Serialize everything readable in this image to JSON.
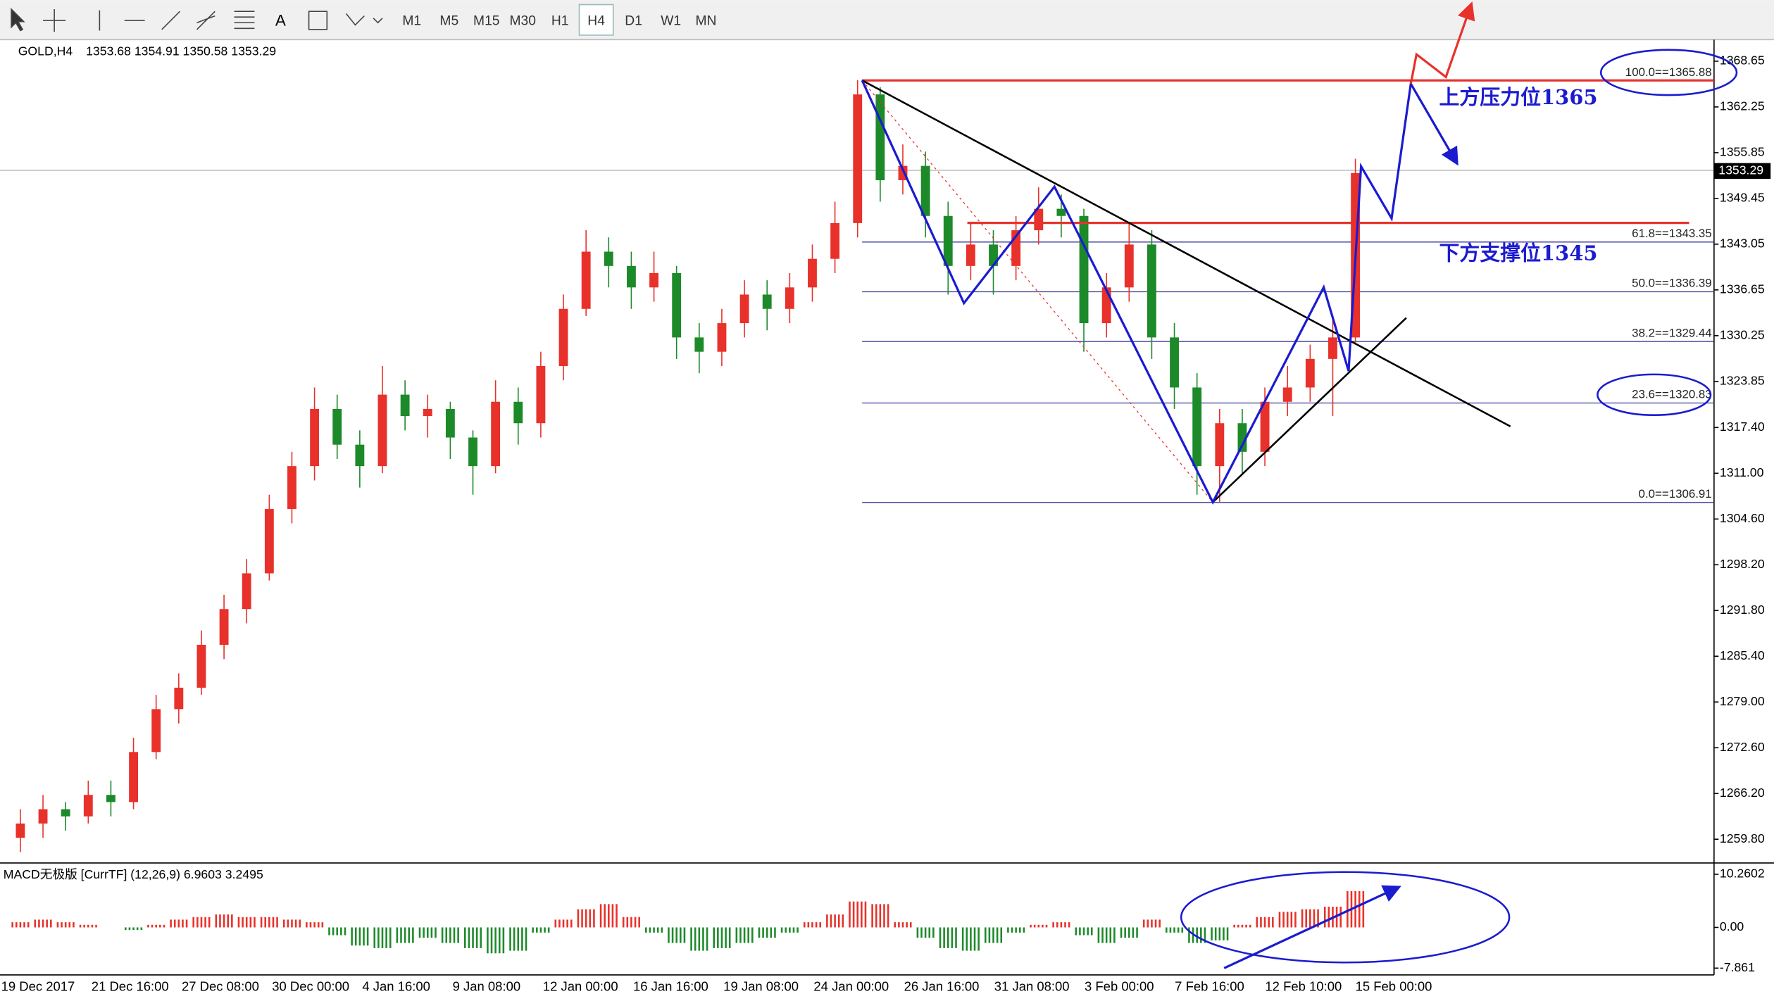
{
  "toolbar": {
    "timeframes": [
      "M1",
      "M5",
      "M15",
      "M30",
      "H1",
      "H4",
      "D1",
      "W1",
      "MN"
    ],
    "active": 5
  },
  "chart_data": {
    "type": "candlestick",
    "symbol": "GOLD,H4",
    "ohlc": "1353.68 1354.91 1350.58 1353.29",
    "up_color": "#e8312a",
    "down_color": "#1d8a2a",
    "categories": [
      "19 Dec 2017",
      "21 Dec 16:00",
      "27 Dec 08:00",
      "30 Dec 00:00",
      "4 Jan 16:00",
      "9 Jan 08:00",
      "12 Jan 00:00",
      "16 Jan 16:00",
      "19 Jan 08:00",
      "24 Jan 00:00",
      "26 Jan 16:00",
      "31 Jan 08:00",
      "3 Feb 00:00",
      "7 Feb 16:00",
      "12 Feb 10:00",
      "15 Feb 00:00"
    ],
    "ylim": [
      1256.64,
      1371.66
    ],
    "yticks": [
      1368.65,
      1362.25,
      1355.85,
      1349.45,
      1343.05,
      1336.65,
      1330.25,
      1323.85,
      {
        "value": 1317.4,
        "label": "1317.40"
      },
      {
        "value": 1311,
        "label": "1311.00"
      },
      {
        "value": 1304.6,
        "label": "1304.60"
      },
      {
        "value": 1298.2,
        "label": "1298.20"
      },
      {
        "value": 1291.8,
        "label": "1291.80"
      },
      {
        "value": 1285.4,
        "label": "1285.40"
      },
      {
        "value": 1279,
        "label": "1279.00"
      },
      {
        "value": 1272.6,
        "label": "1272.60"
      },
      {
        "value": 1266.2,
        "label": "1266.20"
      },
      {
        "value": 1259.8,
        "label": "1259.80"
      }
    ],
    "current_price": 1353.29,
    "candles": [
      [
        1260,
        1264,
        1258,
        1262
      ],
      [
        1262,
        1266,
        1260,
        1264
      ],
      [
        1264,
        1265,
        1261,
        1263
      ],
      [
        1263,
        1268,
        1262,
        1266
      ],
      [
        1266,
        1268,
        1263,
        1265
      ],
      [
        1265,
        1274,
        1264,
        1272
      ],
      [
        1272,
        1280,
        1271,
        1278
      ],
      [
        1278,
        1283,
        1276,
        1281
      ],
      [
        1281,
        1289,
        1280,
        1287
      ],
      [
        1287,
        1294,
        1285,
        1292
      ],
      [
        1292,
        1299,
        1290,
        1297
      ],
      [
        1297,
        1308,
        1296,
        1306
      ],
      [
        1306,
        1314,
        1304,
        1312
      ],
      [
        1312,
        1323,
        1310,
        1320
      ],
      [
        1320,
        1322,
        1313,
        1315
      ],
      [
        1315,
        1317,
        1309,
        1312
      ],
      [
        1312,
        1326,
        1311,
        1322
      ],
      [
        1322,
        1324,
        1317,
        1319
      ],
      [
        1319,
        1322,
        1316,
        1320
      ],
      [
        1320,
        1321,
        1313,
        1316
      ],
      [
        1316,
        1317,
        1308,
        1312
      ],
      [
        1312,
        1324,
        1311,
        1321
      ],
      [
        1321,
        1323,
        1315,
        1318
      ],
      [
        1318,
        1328,
        1316,
        1326
      ],
      [
        1326,
        1336,
        1324,
        1334
      ],
      [
        1334,
        1345,
        1333,
        1342
      ],
      [
        1342,
        1344,
        1337,
        1340
      ],
      [
        1340,
        1342,
        1334,
        1337
      ],
      [
        1337,
        1342,
        1335,
        1339
      ],
      [
        1339,
        1340,
        1327,
        1330
      ],
      [
        1330,
        1332,
        1325,
        1328
      ],
      [
        1328,
        1334,
        1326,
        1332
      ],
      [
        1332,
        1338,
        1330,
        1336
      ],
      [
        1336,
        1338,
        1331,
        1334
      ],
      [
        1334,
        1339,
        1332,
        1337
      ],
      [
        1337,
        1343,
        1335,
        1341
      ],
      [
        1341,
        1349,
        1339,
        1346
      ],
      [
        1346,
        1366,
        1344,
        1364
      ],
      [
        1364,
        1365,
        1349,
        1352
      ],
      [
        1352,
        1357,
        1350,
        1354
      ],
      [
        1354,
        1356,
        1344,
        1347
      ],
      [
        1347,
        1349,
        1336,
        1340
      ],
      [
        1340,
        1346,
        1338,
        1343
      ],
      [
        1343,
        1345,
        1336,
        1340
      ],
      [
        1340,
        1347,
        1338,
        1345
      ],
      [
        1345,
        1351,
        1343,
        1348
      ],
      [
        1348,
        1350,
        1344,
        1347
      ],
      [
        1347,
        1348,
        1328,
        1332
      ],
      [
        1332,
        1339,
        1330,
        1337
      ],
      [
        1337,
        1346,
        1335,
        1343
      ],
      [
        1343,
        1345,
        1327,
        1330
      ],
      [
        1330,
        1332,
        1320,
        1323
      ],
      [
        1323,
        1325,
        1308,
        1312
      ],
      [
        1312,
        1320,
        1307,
        1318
      ],
      [
        1318,
        1320,
        1311,
        1314
      ],
      [
        1314,
        1323,
        1312,
        1321
      ],
      [
        1321,
        1326,
        1319,
        1323
      ],
      [
        1323,
        1329,
        1321,
        1327
      ],
      [
        1327,
        1333,
        1319,
        1330
      ],
      [
        1330,
        1355,
        1329,
        1353
      ]
    ],
    "fib_levels": [
      {
        "label": "100.0==1365.88",
        "value": 1365.88
      },
      {
        "label": "61.8==1343.35",
        "value": 1343.35
      },
      {
        "label": "50.0==1336.39",
        "value": 1336.39
      },
      {
        "label": "38.2==1329.44",
        "value": 1329.44
      },
      {
        "label": "23.6==1320.83",
        "value": 1320.83
      },
      {
        "label": "0.0==1306.91",
        "value": 1306.91
      }
    ],
    "annotations": [
      "上方压力位1365",
      "下方支撑位1345"
    ],
    "macd": {
      "title": "MACD无极版 [CurrTF] (12,26,9) 6.9603 3.2495",
      "ylim": [
        -9.17,
        12.01
      ],
      "yticks": [
        10.2602,
        {
          "value": 0,
          "label": "0.00"
        },
        -7.861
      ],
      "histogram": [
        1,
        1.5,
        1,
        0.5,
        0,
        -0.5,
        0.5,
        1.5,
        2,
        2.5,
        2,
        2,
        1.5,
        1,
        -1.5,
        -3.5,
        -4,
        -3,
        -2,
        -3,
        -4,
        -5,
        -4.5,
        -1,
        1.5,
        3.5,
        4.5,
        2,
        -1,
        -3,
        -4.5,
        -4,
        -3,
        -2,
        -1,
        1,
        2.5,
        5,
        4.5,
        1,
        -2,
        -4,
        -4.5,
        -3,
        -1,
        0.5,
        1,
        -1.5,
        -3,
        -2,
        1.5,
        -1,
        -3,
        -2.5,
        0.5,
        2,
        3,
        3.5,
        4,
        7
      ]
    }
  }
}
